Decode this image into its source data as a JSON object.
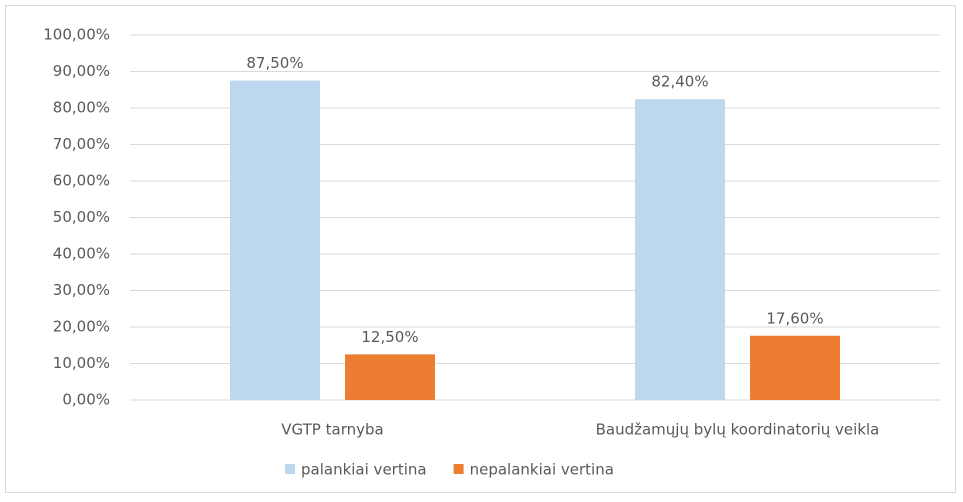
{
  "chart_data": {
    "type": "bar",
    "categories": [
      "VGTP tarnyba",
      "Baudžamųjų bylų koordinatorių veikla"
    ],
    "series": [
      {
        "name": "palankiai vertina",
        "color": "#bdd7ee",
        "values": [
          87.5,
          82.4
        ],
        "value_labels": [
          "87,50%",
          "82,40%"
        ]
      },
      {
        "name": "nepalankiai vertina",
        "color": "#ed7d31",
        "values": [
          12.5,
          17.6
        ],
        "value_labels": [
          "12,50%",
          "17,60%"
        ]
      }
    ],
    "ylim": [
      0,
      100
    ],
    "yticks": [
      {
        "value": 0,
        "label": "0,00%"
      },
      {
        "value": 10,
        "label": "10,00%"
      },
      {
        "value": 20,
        "label": "20,00%"
      },
      {
        "value": 30,
        "label": "30,00%"
      },
      {
        "value": 40,
        "label": "40,00%"
      },
      {
        "value": 50,
        "label": "50,00%"
      },
      {
        "value": 60,
        "label": "60,00%"
      },
      {
        "value": 70,
        "label": "70,00%"
      },
      {
        "value": 80,
        "label": "80,00%"
      },
      {
        "value": 90,
        "label": "90,00%"
      },
      {
        "value": 100,
        "label": "100,00%"
      }
    ],
    "grid": true,
    "legend": "bottom"
  }
}
